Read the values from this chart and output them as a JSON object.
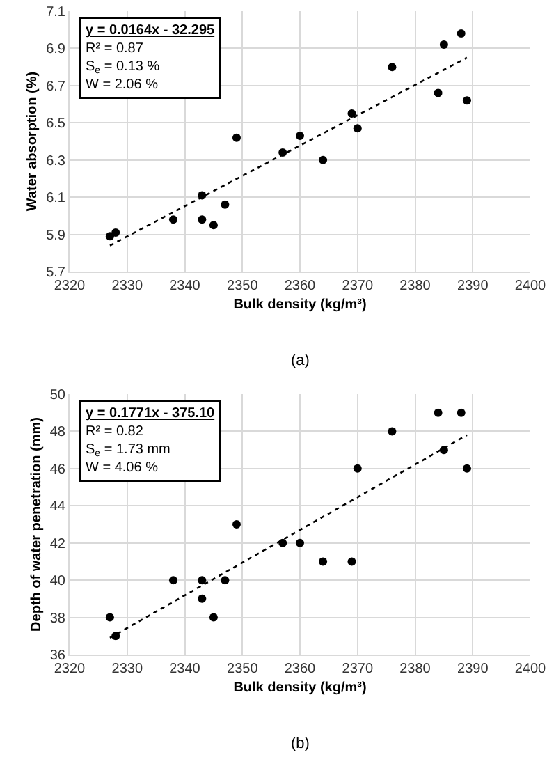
{
  "chart_data": [
    {
      "type": "scatter",
      "xlabel": "Bulk density (kg/m³)",
      "ylabel": "Water absorption (%)",
      "xlim": [
        2320,
        2400
      ],
      "xticks": [
        2320,
        2330,
        2340,
        2350,
        2360,
        2370,
        2380,
        2390,
        2400
      ],
      "ylim": [
        5.7,
        7.1
      ],
      "yticks": [
        {
          "value": 5.7,
          "label": "5.7"
        },
        {
          "value": 5.9,
          "label": "5.9"
        },
        {
          "value": 6.1,
          "label": "6.1"
        },
        {
          "value": 6.3,
          "label": "6.3"
        },
        {
          "value": 6.5,
          "label": "6.5"
        },
        {
          "value": 6.7,
          "label": "6.7"
        },
        {
          "value": 6.9,
          "label": "6.9"
        },
        {
          "value": 7.1,
          "label": "7.1"
        }
      ],
      "grid": true,
      "marker": "circle",
      "series": [
        {
          "color": "#000000",
          "x": [
            2327,
            2328,
            2338,
            2343,
            2343,
            2345,
            2347,
            2349,
            2357,
            2360,
            2364,
            2369,
            2370,
            2376,
            2384,
            2385,
            2388,
            2389
          ],
          "values": [
            5.89,
            5.91,
            5.98,
            6.11,
            5.98,
            5.95,
            6.06,
            6.42,
            6.34,
            6.43,
            6.3,
            6.55,
            6.47,
            6.8,
            6.66,
            6.92,
            6.98,
            6.62
          ]
        },
        {
          "type": "line",
          "line_style": "dotted",
          "marker": "none",
          "color": "#000000",
          "x": [
            2327,
            2389
          ],
          "values": [
            5.84,
            6.85
          ]
        }
      ],
      "annotations": [
        "y = 0.0164x - 32.295",
        "R² = 0.87",
        "S$_{e}$ = 0.13 %",
        "W = 2.06 %",
        "(a)"
      ]
    },
    {
      "type": "scatter",
      "xlabel": "Bulk density (kg/m³)",
      "ylabel": "Depth of water penetration (mm)",
      "xlim": [
        2320,
        2400
      ],
      "xticks": [
        2320,
        2330,
        2340,
        2350,
        2360,
        2370,
        2380,
        2390,
        2400
      ],
      "ylim": [
        36,
        50
      ],
      "yticks": [
        36,
        38,
        40,
        42,
        44,
        46,
        48,
        50
      ],
      "grid": true,
      "marker": "circle",
      "series": [
        {
          "color": "#000000",
          "x": [
            2327,
            2328,
            2338,
            2343,
            2343,
            2345,
            2347,
            2349,
            2357,
            2360,
            2364,
            2369,
            2370,
            2376,
            2384,
            2385,
            2388,
            2389
          ],
          "values": [
            38,
            37,
            40,
            40,
            39,
            38,
            40,
            43,
            42,
            42,
            41,
            41,
            46,
            48,
            49,
            47,
            49,
            46
          ]
        },
        {
          "type": "line",
          "line_style": "dotted",
          "marker": "none",
          "color": "#000000",
          "x": [
            2327,
            2389
          ],
          "values": [
            36.9,
            47.8
          ]
        }
      ],
      "annotations": [
        "y = 0.1771x - 375.10",
        "R² = 0.82",
        "S$_{e}$ = 1.73 mm",
        "W = 4.06 %",
        "(b)"
      ]
    }
  ]
}
